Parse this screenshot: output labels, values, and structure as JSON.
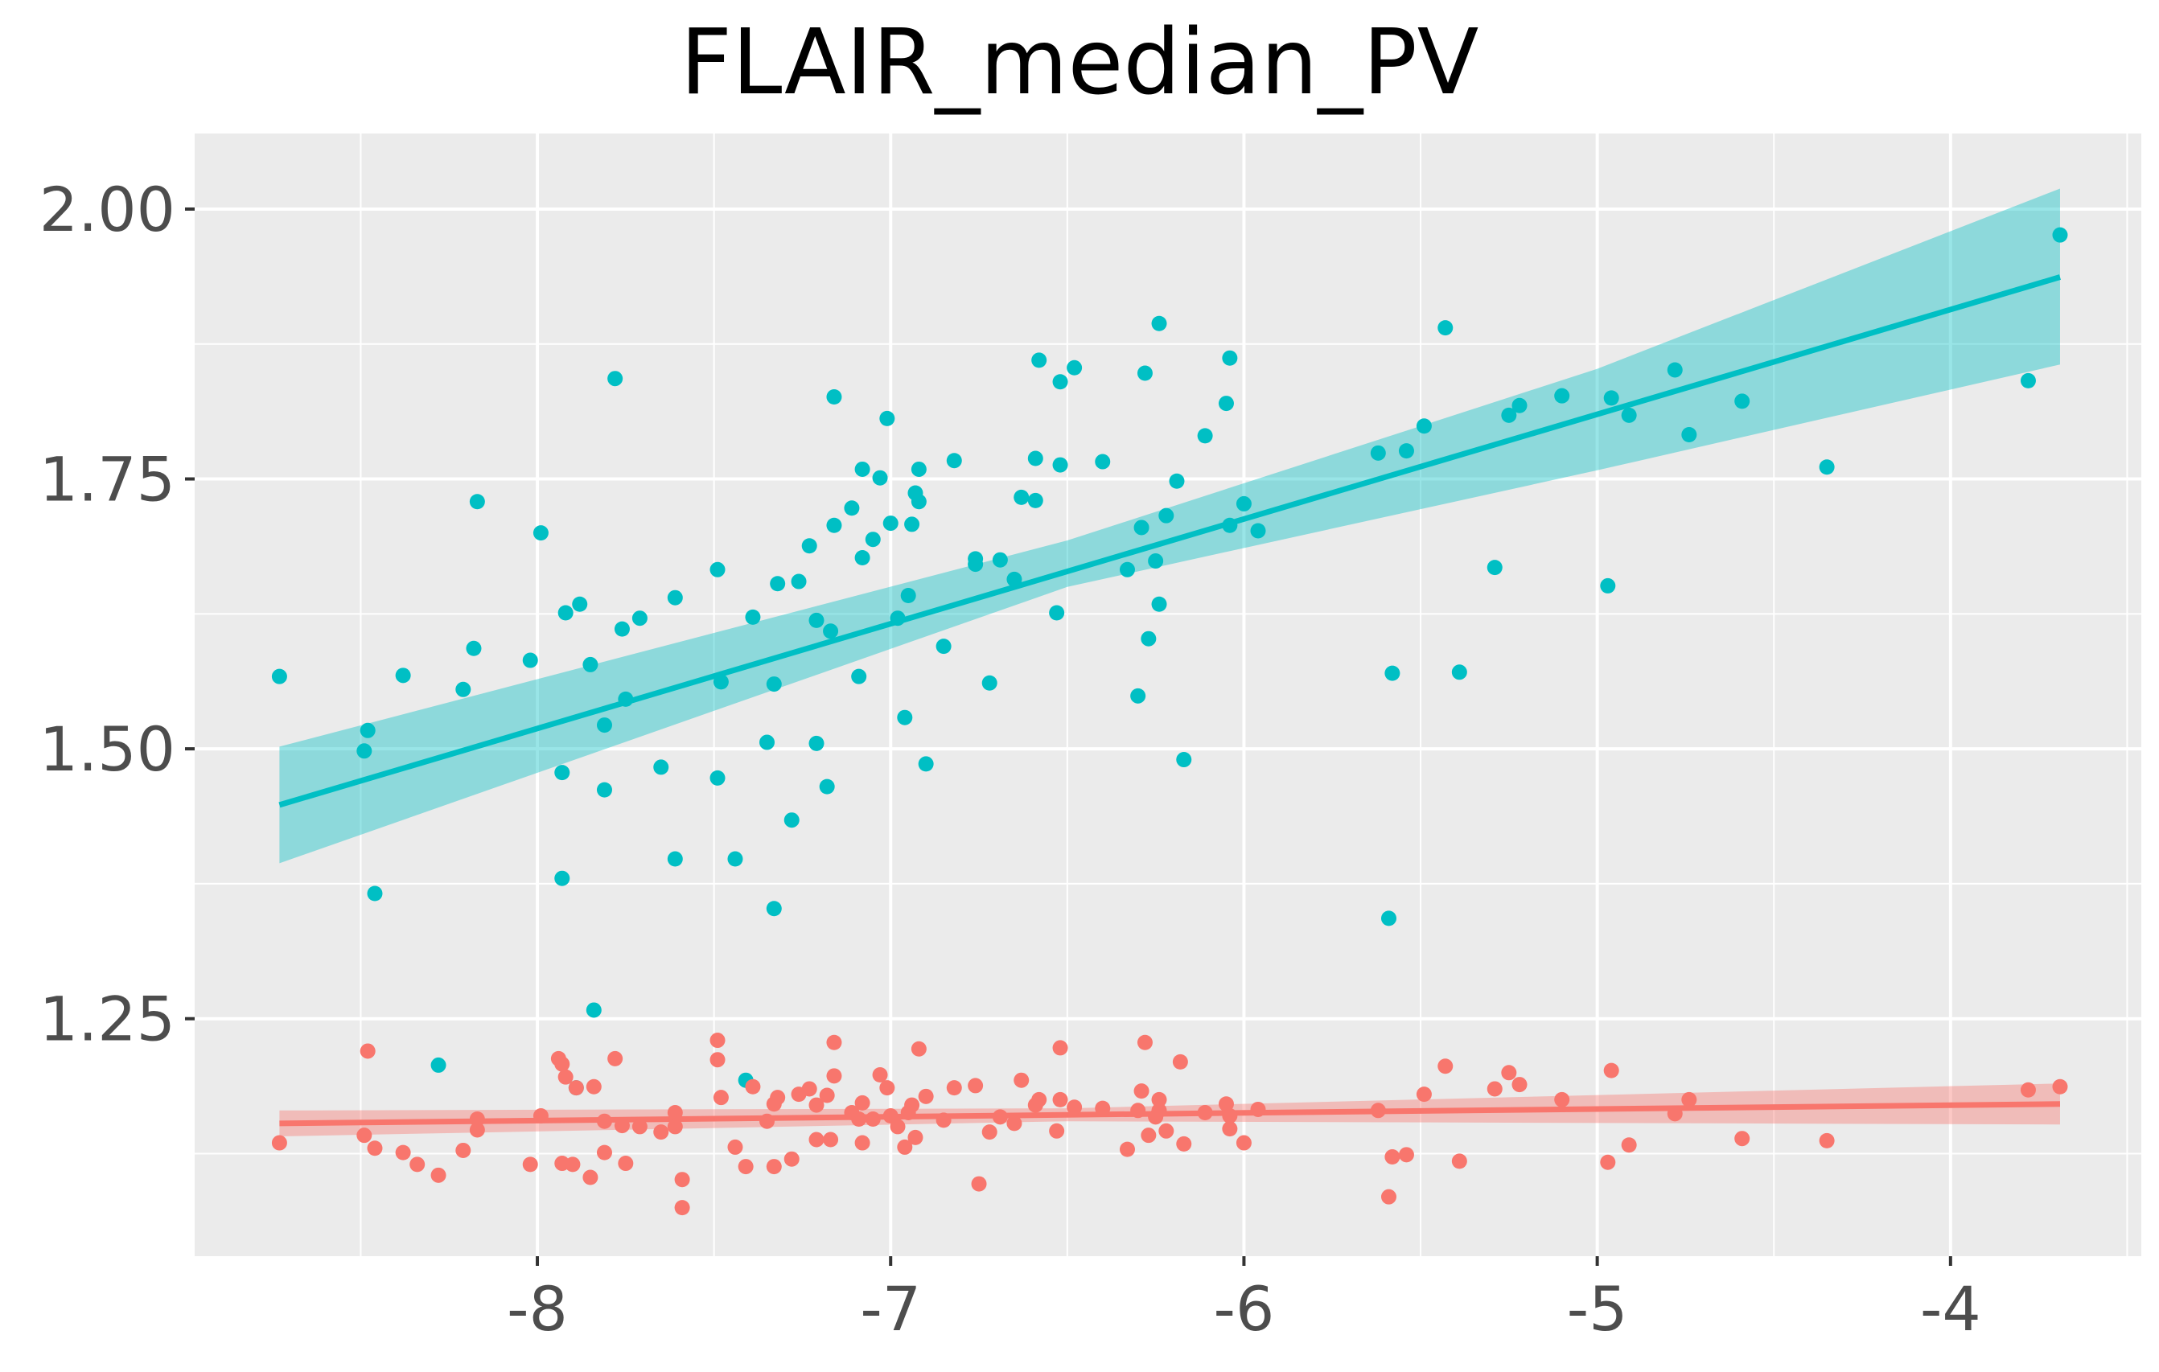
{
  "chart_data": {
    "type": "scatter",
    "title": "FLAIR_median_PV",
    "xlabel": "",
    "ylabel": "",
    "xlim": [
      -8.97,
      -3.46
    ],
    "ylim": [
      1.03,
      2.07
    ],
    "x_ticks": [
      -8,
      -7,
      -6,
      -5,
      -4
    ],
    "x_tick_labels": [
      "-8",
      "-7",
      "-6",
      "-5",
      "-4"
    ],
    "y_ticks": [
      1.25,
      1.5,
      1.75,
      2.0
    ],
    "y_tick_labels": [
      "1.25",
      "1.50",
      "1.75",
      "2.00"
    ],
    "grid": true,
    "legend": "none",
    "series": [
      {
        "color": "#00BFC4",
        "fit": {
          "x": [
            -8.73,
            -3.69
          ],
          "y": [
            1.448,
            1.937
          ]
        },
        "band": {
          "x": [
            -8.73,
            -6.5,
            -5.0,
            -3.69
          ],
          "lower": [
            1.394,
            1.65,
            1.758,
            1.856
          ],
          "upper": [
            1.502,
            1.693,
            1.852,
            2.019
          ]
        },
        "points": [
          [
            -8.73,
            1.567
          ],
          [
            -8.49,
            1.498
          ],
          [
            -8.48,
            1.517
          ],
          [
            -8.46,
            1.366
          ],
          [
            -8.38,
            1.568
          ],
          [
            -8.28,
            1.207
          ],
          [
            -8.21,
            1.555
          ],
          [
            -8.18,
            1.593
          ],
          [
            -8.17,
            1.729
          ],
          [
            -8.02,
            1.582
          ],
          [
            -7.99,
            1.7
          ],
          [
            -7.93,
            1.478
          ],
          [
            -7.93,
            1.38
          ],
          [
            -7.92,
            1.626
          ],
          [
            -7.89,
            1.186
          ],
          [
            -7.88,
            1.634
          ],
          [
            -7.85,
            1.578
          ],
          [
            -7.84,
            1.258
          ],
          [
            -7.81,
            1.522
          ],
          [
            -7.81,
            1.462
          ],
          [
            -7.78,
            1.843
          ],
          [
            -7.76,
            1.611
          ],
          [
            -7.75,
            1.546
          ],
          [
            -7.71,
            1.621
          ],
          [
            -7.65,
            1.483
          ],
          [
            -7.61,
            1.64
          ],
          [
            -7.61,
            1.398
          ],
          [
            -7.49,
            1.473
          ],
          [
            -7.49,
            1.666
          ],
          [
            -7.48,
            1.562
          ],
          [
            -7.44,
            1.398
          ],
          [
            -7.41,
            1.193
          ],
          [
            -7.39,
            1.622
          ],
          [
            -7.35,
            1.506
          ],
          [
            -7.33,
            1.352
          ],
          [
            -7.33,
            1.56
          ],
          [
            -7.32,
            1.653
          ],
          [
            -7.28,
            1.434
          ],
          [
            -7.26,
            1.655
          ],
          [
            -7.23,
            1.688
          ],
          [
            -7.21,
            1.505
          ],
          [
            -7.21,
            1.619
          ],
          [
            -7.18,
            1.465
          ],
          [
            -7.17,
            1.609
          ],
          [
            -7.16,
            1.707
          ],
          [
            -7.16,
            1.826
          ],
          [
            -7.11,
            1.723
          ],
          [
            -7.09,
            1.567
          ],
          [
            -7.08,
            1.759
          ],
          [
            -7.08,
            1.677
          ],
          [
            -7.05,
            1.694
          ],
          [
            -7.03,
            1.751
          ],
          [
            -7.01,
            1.806
          ],
          [
            -7.0,
            1.709
          ],
          [
            -6.98,
            1.621
          ],
          [
            -6.96,
            1.529
          ],
          [
            -6.95,
            1.642
          ],
          [
            -6.94,
            1.708
          ],
          [
            -6.93,
            1.737
          ],
          [
            -6.92,
            1.729
          ],
          [
            -6.92,
            1.759
          ],
          [
            -6.9,
            1.486
          ],
          [
            -6.85,
            1.595
          ],
          [
            -6.82,
            1.767
          ],
          [
            -6.76,
            1.676
          ],
          [
            -6.76,
            1.671
          ],
          [
            -6.72,
            1.561
          ],
          [
            -6.69,
            1.675
          ],
          [
            -6.65,
            1.657
          ],
          [
            -6.63,
            1.733
          ],
          [
            -6.59,
            1.73
          ],
          [
            -6.59,
            1.769
          ],
          [
            -6.58,
            1.86
          ],
          [
            -6.53,
            1.626
          ],
          [
            -6.52,
            1.763
          ],
          [
            -6.52,
            1.84
          ],
          [
            -6.48,
            1.853
          ],
          [
            -6.4,
            1.766
          ],
          [
            -6.33,
            1.666
          ],
          [
            -6.3,
            1.549
          ],
          [
            -6.29,
            1.705
          ],
          [
            -6.28,
            1.848
          ],
          [
            -6.27,
            1.602
          ],
          [
            -6.25,
            1.674
          ],
          [
            -6.24,
            1.634
          ],
          [
            -6.24,
            1.894
          ],
          [
            -6.22,
            1.716
          ],
          [
            -6.19,
            1.748
          ],
          [
            -6.17,
            1.49
          ],
          [
            -6.11,
            1.79
          ],
          [
            -6.05,
            1.82
          ],
          [
            -6.04,
            1.862
          ],
          [
            -6.04,
            1.707
          ],
          [
            -6.0,
            1.727
          ],
          [
            -5.96,
            1.702
          ],
          [
            -5.62,
            1.774
          ],
          [
            -5.59,
            1.343
          ],
          [
            -5.58,
            1.57
          ],
          [
            -5.54,
            1.776
          ],
          [
            -5.49,
            1.799
          ],
          [
            -5.43,
            1.89
          ],
          [
            -5.39,
            1.571
          ],
          [
            -5.29,
            1.668
          ],
          [
            -5.25,
            1.809
          ],
          [
            -5.22,
            1.818
          ],
          [
            -5.1,
            1.827
          ],
          [
            -4.97,
            1.651
          ],
          [
            -4.96,
            1.825
          ],
          [
            -4.91,
            1.809
          ],
          [
            -4.78,
            1.851
          ],
          [
            -4.74,
            1.791
          ],
          [
            -4.59,
            1.822
          ],
          [
            -4.35,
            1.761
          ],
          [
            -3.78,
            1.841
          ],
          [
            -3.69,
            1.976
          ]
        ]
      },
      {
        "color": "#F8766D",
        "fit": {
          "x": [
            -8.73,
            -3.69
          ],
          "y": [
            1.153,
            1.171
          ]
        },
        "band": {
          "x": [
            -8.73,
            -6.5,
            -3.69
          ],
          "lower": [
            1.141,
            1.155,
            1.152
          ],
          "upper": [
            1.165,
            1.167,
            1.19
          ]
        },
        "points": [
          [
            -8.73,
            1.135
          ],
          [
            -8.49,
            1.142
          ],
          [
            -8.48,
            1.22
          ],
          [
            -8.46,
            1.13
          ],
          [
            -8.38,
            1.126
          ],
          [
            -8.34,
            1.115
          ],
          [
            -8.28,
            1.105
          ],
          [
            -8.21,
            1.128
          ],
          [
            -8.17,
            1.157
          ],
          [
            -8.17,
            1.147
          ],
          [
            -8.02,
            1.115
          ],
          [
            -7.99,
            1.16
          ],
          [
            -7.94,
            1.213
          ],
          [
            -7.93,
            1.208
          ],
          [
            -7.93,
            1.116
          ],
          [
            -7.92,
            1.196
          ],
          [
            -7.9,
            1.115
          ],
          [
            -7.89,
            1.186
          ],
          [
            -7.85,
            1.103
          ],
          [
            -7.84,
            1.187
          ],
          [
            -7.81,
            1.126
          ],
          [
            -7.81,
            1.155
          ],
          [
            -7.78,
            1.213
          ],
          [
            -7.76,
            1.151
          ],
          [
            -7.75,
            1.116
          ],
          [
            -7.71,
            1.15
          ],
          [
            -7.65,
            1.145
          ],
          [
            -7.61,
            1.15
          ],
          [
            -7.61,
            1.163
          ],
          [
            -7.59,
            1.101
          ],
          [
            -7.59,
            1.075
          ],
          [
            -7.49,
            1.212
          ],
          [
            -7.49,
            1.23
          ],
          [
            -7.48,
            1.177
          ],
          [
            -7.44,
            1.131
          ],
          [
            -7.41,
            1.113
          ],
          [
            -7.39,
            1.187
          ],
          [
            -7.35,
            1.155
          ],
          [
            -7.33,
            1.113
          ],
          [
            -7.33,
            1.171
          ],
          [
            -7.32,
            1.177
          ],
          [
            -7.28,
            1.12
          ],
          [
            -7.26,
            1.18
          ],
          [
            -7.23,
            1.185
          ],
          [
            -7.21,
            1.138
          ],
          [
            -7.21,
            1.17
          ],
          [
            -7.18,
            1.179
          ],
          [
            -7.17,
            1.138
          ],
          [
            -7.16,
            1.197
          ],
          [
            -7.16,
            1.228
          ],
          [
            -7.11,
            1.163
          ],
          [
            -7.09,
            1.157
          ],
          [
            -7.08,
            1.135
          ],
          [
            -7.08,
            1.172
          ],
          [
            -7.05,
            1.157
          ],
          [
            -7.03,
            1.198
          ],
          [
            -7.01,
            1.186
          ],
          [
            -7.0,
            1.16
          ],
          [
            -6.98,
            1.15
          ],
          [
            -6.96,
            1.131
          ],
          [
            -6.95,
            1.163
          ],
          [
            -6.94,
            1.17
          ],
          [
            -6.93,
            1.14
          ],
          [
            -6.92,
            1.222
          ],
          [
            -6.9,
            1.178
          ],
          [
            -6.85,
            1.156
          ],
          [
            -6.82,
            1.186
          ],
          [
            -6.76,
            1.188
          ],
          [
            -6.75,
            1.097
          ],
          [
            -6.72,
            1.145
          ],
          [
            -6.69,
            1.159
          ],
          [
            -6.65,
            1.153
          ],
          [
            -6.63,
            1.193
          ],
          [
            -6.59,
            1.17
          ],
          [
            -6.58,
            1.175
          ],
          [
            -6.53,
            1.146
          ],
          [
            -6.52,
            1.223
          ],
          [
            -6.52,
            1.175
          ],
          [
            -6.48,
            1.168
          ],
          [
            -6.4,
            1.167
          ],
          [
            -6.33,
            1.129
          ],
          [
            -6.3,
            1.165
          ],
          [
            -6.29,
            1.183
          ],
          [
            -6.28,
            1.228
          ],
          [
            -6.27,
            1.142
          ],
          [
            -6.25,
            1.159
          ],
          [
            -6.24,
            1.175
          ],
          [
            -6.24,
            1.165
          ],
          [
            -6.22,
            1.146
          ],
          [
            -6.18,
            1.21
          ],
          [
            -6.17,
            1.134
          ],
          [
            -6.11,
            1.163
          ],
          [
            -6.05,
            1.171
          ],
          [
            -6.04,
            1.16
          ],
          [
            -6.04,
            1.148
          ],
          [
            -6.0,
            1.135
          ],
          [
            -5.96,
            1.166
          ],
          [
            -5.62,
            1.165
          ],
          [
            -5.59,
            1.085
          ],
          [
            -5.58,
            1.122
          ],
          [
            -5.54,
            1.124
          ],
          [
            -5.49,
            1.18
          ],
          [
            -5.43,
            1.206
          ],
          [
            -5.39,
            1.118
          ],
          [
            -5.29,
            1.185
          ],
          [
            -5.25,
            1.2
          ],
          [
            -5.22,
            1.189
          ],
          [
            -5.1,
            1.175
          ],
          [
            -4.97,
            1.117
          ],
          [
            -4.96,
            1.202
          ],
          [
            -4.91,
            1.133
          ],
          [
            -4.78,
            1.162
          ],
          [
            -4.74,
            1.175
          ],
          [
            -4.59,
            1.139
          ],
          [
            -4.35,
            1.137
          ],
          [
            -3.78,
            1.184
          ],
          [
            -3.69,
            1.187
          ]
        ]
      }
    ]
  }
}
